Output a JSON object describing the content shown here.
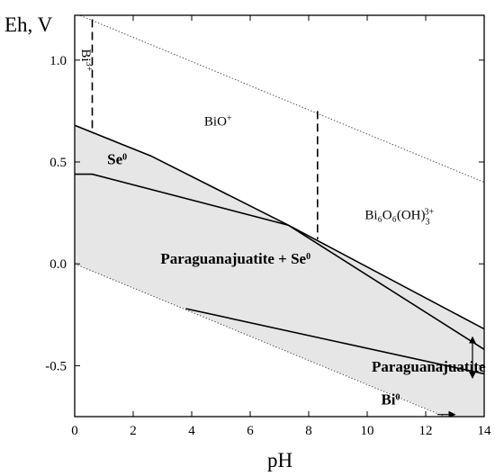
{
  "chart_data": {
    "type": "area",
    "title": "",
    "xlabel": "pH",
    "ylabel": "Eh, V",
    "xlim": [
      0,
      14
    ],
    "ylim": [
      -0.75,
      1.22
    ],
    "x_ticks": [
      0,
      2,
      4,
      6,
      8,
      10,
      12,
      14
    ],
    "y_ticks": [
      -0.5,
      0.0,
      0.5,
      1.0
    ],
    "x_tick_labels": [
      "0",
      "2",
      "4",
      "6",
      "8",
      "10",
      "12",
      "14"
    ],
    "y_tick_labels": [
      "-0.5",
      "0.0",
      "0.5",
      "1.0"
    ],
    "grid": false,
    "colors": {
      "shaded_region": "#e6e6e6",
      "lines": "#000000",
      "water_lines": "#555555"
    },
    "shaded_region": [
      [
        0,
        0.68
      ],
      [
        2.6,
        0.53
      ],
      [
        7.3,
        0.19
      ],
      [
        14,
        -0.32
      ],
      [
        14,
        -0.75
      ],
      [
        12.7,
        -0.75
      ],
      [
        0,
        0.0
      ]
    ],
    "water_stability_lines": [
      {
        "name": "upper",
        "points": [
          [
            0,
            1.23
          ],
          [
            14,
            0.4
          ]
        ]
      },
      {
        "name": "lower",
        "points": [
          [
            0,
            0.0
          ],
          [
            14,
            -0.83
          ]
        ]
      }
    ],
    "boundaries": [
      {
        "style": "solid",
        "points": [
          [
            0,
            0.68
          ],
          [
            2.6,
            0.53
          ],
          [
            7.3,
            0.19
          ],
          [
            14,
            -0.32
          ]
        ]
      },
      {
        "style": "solid",
        "points": [
          [
            0,
            0.44
          ],
          [
            0.6,
            0.44
          ],
          [
            7.3,
            0.19
          ],
          [
            14,
            -0.42
          ]
        ]
      },
      {
        "style": "solid",
        "points": [
          [
            3.8,
            -0.22
          ],
          [
            14,
            -0.54
          ]
        ]
      },
      {
        "style": "dashed",
        "points": [
          [
            0.6,
            1.2
          ],
          [
            0.6,
            0.65
          ]
        ]
      },
      {
        "style": "dashed",
        "points": [
          [
            8.3,
            0.75
          ],
          [
            8.3,
            0.12
          ]
        ]
      },
      {
        "style": "arrow",
        "points": [
          [
            12.4,
            -0.74
          ],
          [
            13.0,
            -0.74
          ]
        ]
      },
      {
        "style": "double-arrow",
        "points": [
          [
            13.6,
            -0.36
          ],
          [
            13.6,
            -0.56
          ]
        ]
      }
    ],
    "regions": [
      {
        "label": "Bi",
        "sup": "3+",
        "x": 0.25,
        "y": 1.0,
        "rotate": 90,
        "bold": false
      },
      {
        "label": "BiO",
        "sup": "+",
        "x": 4.9,
        "y": 0.68,
        "bold": false
      },
      {
        "label": "Se",
        "sup": "0",
        "x": 1.45,
        "y": 0.49,
        "bold": true
      },
      {
        "label": "Bi₆O₆(OH)",
        "sup": "3+",
        "sub": "3",
        "x": 11.1,
        "y": 0.22,
        "bold": false
      },
      {
        "label": "Paraguanajuatite + Se",
        "sup": "0",
        "x": 5.5,
        "y": 0.0,
        "bold": true
      },
      {
        "label": "Paraguanajuatite",
        "x": 12.1,
        "y": -0.53,
        "bold": true
      },
      {
        "label": "Bi",
        "sup": "0",
        "x": 10.8,
        "y": -0.69,
        "bold": true
      }
    ]
  }
}
